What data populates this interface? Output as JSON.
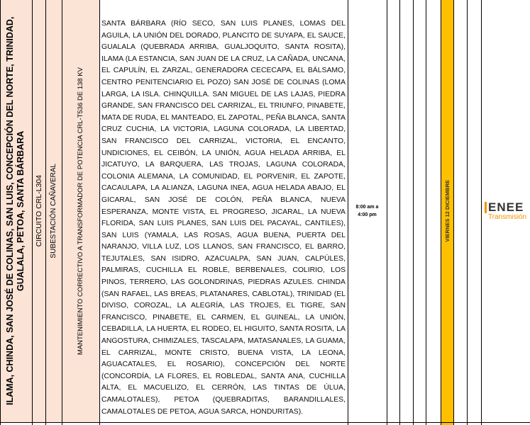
{
  "row": {
    "location": "ILAMA, CHINDA, SAN JOSÉ DE COLINAS, SAN LUIS, CONCEPCIÓN DEL NORTE, TRINIDAD, GUALALA, PETOA, SANTA BÁRBARA",
    "circuit": "CIRCUITO CRL-L304",
    "substation": "SUBESTACIÓN CAÑAVERAL",
    "description": "MANTENIMIENTO CORRECTIVO A TRANSFORMADOR DE POTENCIA CRL-T536 DE 138 KV",
    "areas": "SANTA BÁRBARA (RÍO SECO, SAN LUIS PLANES, LOMAS DEL AGUILA, LA UNIÓN DEL DORADO, PLANCITO DE SUYAPA, EL SAUCE, GUALALA (QUEBRADA ARRIBA, GUALJOQUITO, SANTA ROSITA), ILAMA (LA ESTANCIA, SAN JUAN DE LA CRUZ, LA CAÑADA, UNCANA, EL CAPULÍN, EL ZARZAL, GENERADORA CECECAPA, EL BÁLSAMO, CENTRO PENITENCIARIO EL POZO) SAN JOSÉ DE COLINAS (LOMA LARGA, LA ISLA. CHINQUILLA. SAN MIGUEL DE LAS LAJAS, PIEDRA GRANDE, SAN FRANCISCO DEL CARRIZAL, EL TRIUNFO, PINABETE, MATA DE RUDA, EL MANTEADO, EL ZAPOTAL, PEÑA BLANCA, SANTA CRUZ CUCHIA, LA VICTORIA, LAGUNA COLORADA, LA LIBERTAD, SAN FRANCISCO DEL CARRIZAL, VICTORIA, EL ENCANTO, UNDICIONES, EL CEIBÓN, LA UNIÓN, AGUA HELADA ARRIBA, EL JICATUYO, LA BARQUERA, LAS TROJAS, LAGUNA COLORADA, COLONIA ALEMANA, LA COMUNIDAD, EL PORVENIR, EL ZAPOTE, CACAULAPA, LA ALIANZA, LAGUNA INEA, AGUA HELADA ABAJO, EL GICARAL, SAN JOSÉ DE COLÓN, PEÑA BLANCA, NUEVA ESPERANZA, MONTE VISTA, EL PROGRESO, JICARAL, LA NUEVA FLORIDA, SAN LUIS PLANES, SAN LUIS DEL PACAYAL, CANTILES), SAN LUIS (YAMALA, LAS ROSAS, AGUA BUENA, PUERTA DEL NARANJO, VILLA LUZ, LOS LLANOS, SAN FRANCISCO, EL BARRO, TEJUTALES, SAN ISIDRO, AZACUALPA, SAN JUAN, CALPÚLES, PALMIRAS, CUCHILLA EL ROBLE, BERBENALES, COLIRIO, LOS PINOS, TERRERO, LAS GOLONDRINAS, PIEDRAS AZULES. CHINDA (SAN RAFAEL, LAS BREAS, PLATANARES, CABLOTAL), TRINIDAD (EL DIVISO, COROZAL, LA ALEGRÍA, LAS TROJES, EL TIGRE, SAN FRANCISCO, PINABETE, EL CARMEN, EL GUINEAL, LA UNIÓN, CEBADILLA, LA HUERTA, EL RODEO, EL HIGUITO, SANTA ROSITA, LA ANGOSTURA, CHIMIZALES, TASCALAPA, MATASANALES, LA GUAMA, EL CARRIZAL, MONTE CRISTO, BUENA VISTA, LA LEONA, AGUACATALES, EL ROSARIO), CONCEPCIÓN DEL NORTE (CONCORDÍA, LA FLORES, EL ROBLEDAL, SANTA ANA, CUCHILLA ALTA, EL MACUELIZO, EL CERRÓN, LAS TINTAS DE ÚLUA, CAMALOTALES), PETOA (QUEBRADITAS, BARANDILLALES, CAMALOTALES DE PETOA, AGUA SARCA, HONDURITAS).",
    "time_start": "8:00 am a",
    "time_end": "4:00 pm",
    "date": "VIERNES 12 DICIEMBRE"
  },
  "logo": {
    "name": "ENEE",
    "subtitle": "Transmisión"
  }
}
